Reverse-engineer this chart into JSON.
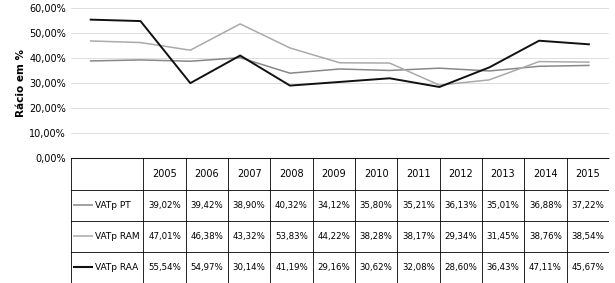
{
  "years": [
    2005,
    2006,
    2007,
    2008,
    2009,
    2010,
    2011,
    2012,
    2013,
    2014,
    2015
  ],
  "VATp_PT": [
    39.02,
    39.42,
    38.9,
    40.32,
    34.12,
    35.8,
    35.21,
    36.13,
    35.01,
    36.88,
    37.22
  ],
  "VATp_RAM": [
    47.01,
    46.38,
    43.32,
    53.83,
    44.22,
    38.28,
    38.17,
    29.34,
    31.45,
    38.76,
    38.54
  ],
  "VATp_RAA": [
    55.54,
    54.97,
    30.14,
    41.19,
    29.16,
    30.62,
    32.08,
    28.6,
    36.43,
    47.11,
    45.67
  ],
  "color_PT": "#888888",
  "color_RAM": "#aaaaaa",
  "color_RAA": "#111111",
  "ylabel": "Rácio em %",
  "ylim": [
    0,
    60
  ],
  "yticks": [
    0,
    10,
    20,
    30,
    40,
    50,
    60
  ],
  "ytick_labels": [
    "0,00%",
    "10,00%",
    "20,00%",
    "30,00%",
    "40,00%",
    "50,00%",
    "60,00%"
  ],
  "legend_PT": "VATp PT",
  "legend_RAM": "VATp RAM",
  "legend_RAA": "VATp RAA",
  "table_PT": [
    "39,02%",
    "39,42%",
    "38,90%",
    "40,32%",
    "34,12%",
    "35,80%",
    "35,21%",
    "36,13%",
    "35,01%",
    "36,88%",
    "37,22%"
  ],
  "table_RAM": [
    "47,01%",
    "46,38%",
    "43,32%",
    "53,83%",
    "44,22%",
    "38,28%",
    "38,17%",
    "29,34%",
    "31,45%",
    "38,76%",
    "38,54%"
  ],
  "table_RAA": [
    "55,54%",
    "54,97%",
    "30,14%",
    "41,19%",
    "29,16%",
    "30,62%",
    "32,08%",
    "28,60%",
    "36,43%",
    "47,11%",
    "45,67%"
  ]
}
